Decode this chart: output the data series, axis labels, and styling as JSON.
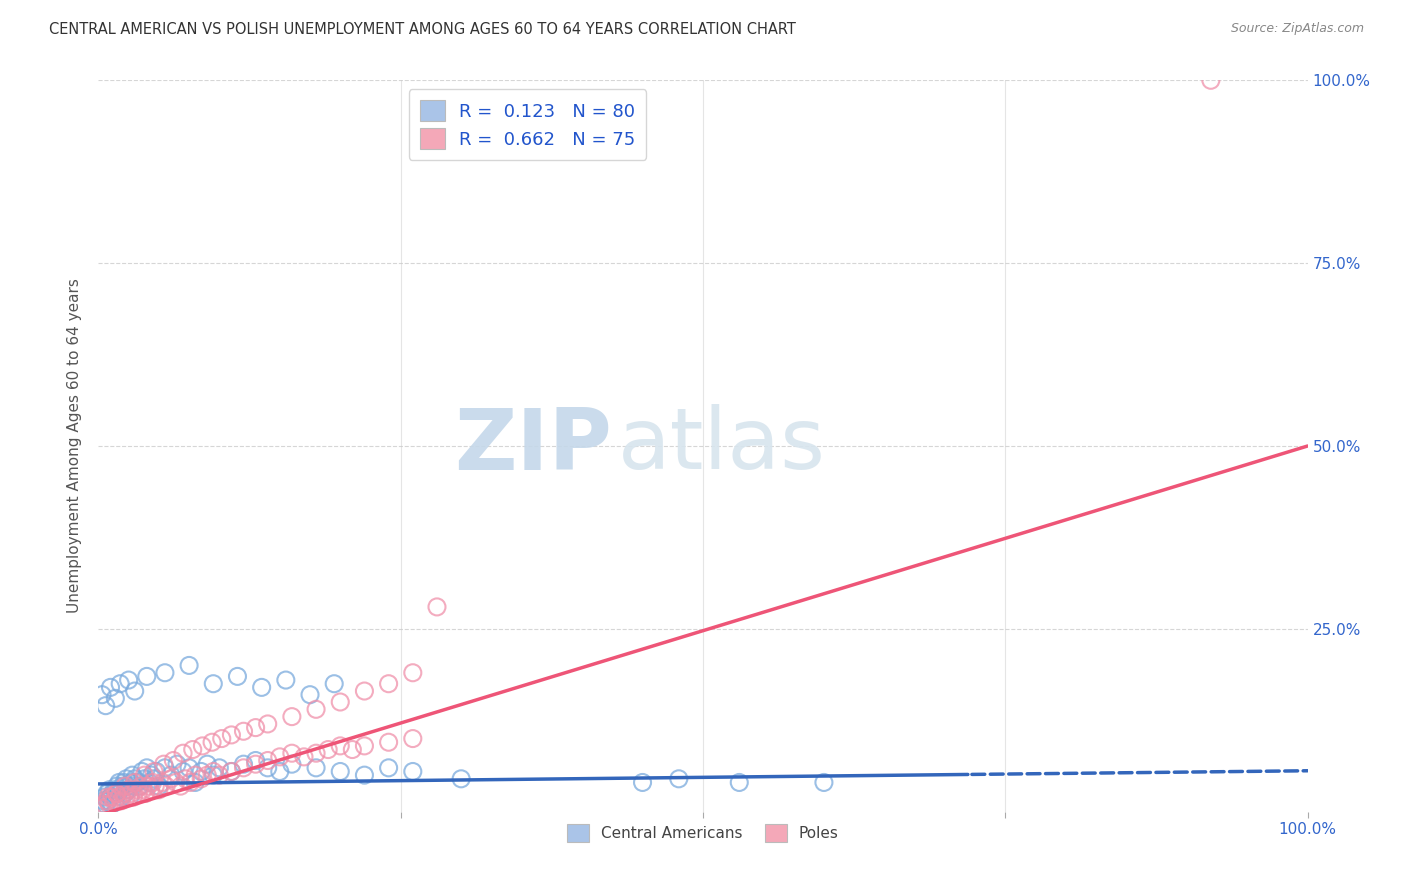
{
  "title": "CENTRAL AMERICAN VS POLISH UNEMPLOYMENT AMONG AGES 60 TO 64 YEARS CORRELATION CHART",
  "source": "Source: ZipAtlas.com",
  "ylabel": "Unemployment Among Ages 60 to 64 years",
  "xlim": [
    0,
    1.0
  ],
  "ylim": [
    0,
    1.0
  ],
  "background_color": "#ffffff",
  "grid_color": "#cccccc",
  "legend_R1": "0.123",
  "legend_N1": "80",
  "legend_R2": "0.662",
  "legend_N2": "75",
  "legend_color1": "#aac4e8",
  "legend_color2": "#f4a8b8",
  "series1_name": "Central Americans",
  "series2_name": "Poles",
  "series1_color": "#7aaadd",
  "series2_color": "#f090aa",
  "series1_line_color": "#3366bb",
  "series2_line_color": "#ee5577",
  "ca_line_slope": 0.018,
  "ca_line_intercept": 0.038,
  "ca_line_solid_end": 0.72,
  "pl_line_slope": 0.505,
  "pl_line_intercept": -0.005,
  "ca_x": [
    0.002,
    0.004,
    0.005,
    0.006,
    0.007,
    0.008,
    0.009,
    0.01,
    0.011,
    0.012,
    0.013,
    0.014,
    0.015,
    0.016,
    0.017,
    0.018,
    0.019,
    0.02,
    0.021,
    0.022,
    0.023,
    0.024,
    0.025,
    0.026,
    0.027,
    0.028,
    0.029,
    0.03,
    0.032,
    0.034,
    0.036,
    0.038,
    0.04,
    0.042,
    0.044,
    0.046,
    0.048,
    0.05,
    0.055,
    0.06,
    0.065,
    0.07,
    0.075,
    0.08,
    0.085,
    0.09,
    0.095,
    0.1,
    0.11,
    0.12,
    0.13,
    0.14,
    0.15,
    0.16,
    0.18,
    0.2,
    0.22,
    0.24,
    0.26,
    0.3,
    0.003,
    0.006,
    0.01,
    0.014,
    0.018,
    0.025,
    0.03,
    0.04,
    0.055,
    0.075,
    0.095,
    0.115,
    0.135,
    0.155,
    0.175,
    0.195,
    0.45,
    0.48,
    0.53,
    0.6
  ],
  "ca_y": [
    0.01,
    0.015,
    0.02,
    0.01,
    0.025,
    0.015,
    0.03,
    0.02,
    0.01,
    0.025,
    0.03,
    0.015,
    0.035,
    0.025,
    0.04,
    0.03,
    0.02,
    0.035,
    0.04,
    0.025,
    0.045,
    0.035,
    0.03,
    0.02,
    0.04,
    0.05,
    0.035,
    0.045,
    0.04,
    0.035,
    0.055,
    0.045,
    0.06,
    0.04,
    0.05,
    0.045,
    0.055,
    0.035,
    0.06,
    0.05,
    0.065,
    0.055,
    0.06,
    0.04,
    0.055,
    0.065,
    0.05,
    0.06,
    0.055,
    0.065,
    0.07,
    0.06,
    0.055,
    0.065,
    0.06,
    0.055,
    0.05,
    0.06,
    0.055,
    0.045,
    0.16,
    0.145,
    0.17,
    0.155,
    0.175,
    0.18,
    0.165,
    0.185,
    0.19,
    0.2,
    0.175,
    0.185,
    0.17,
    0.18,
    0.16,
    0.175,
    0.04,
    0.045,
    0.04,
    0.04
  ],
  "pl_x": [
    0.003,
    0.005,
    0.007,
    0.009,
    0.011,
    0.013,
    0.015,
    0.017,
    0.019,
    0.021,
    0.023,
    0.025,
    0.027,
    0.029,
    0.031,
    0.033,
    0.035,
    0.037,
    0.039,
    0.041,
    0.043,
    0.045,
    0.047,
    0.05,
    0.053,
    0.056,
    0.06,
    0.064,
    0.068,
    0.072,
    0.076,
    0.08,
    0.085,
    0.09,
    0.095,
    0.1,
    0.11,
    0.12,
    0.13,
    0.14,
    0.15,
    0.16,
    0.17,
    0.18,
    0.19,
    0.2,
    0.21,
    0.22,
    0.24,
    0.26,
    0.008,
    0.015,
    0.022,
    0.03,
    0.038,
    0.046,
    0.054,
    0.062,
    0.07,
    0.078,
    0.086,
    0.094,
    0.102,
    0.11,
    0.12,
    0.13,
    0.14,
    0.16,
    0.18,
    0.2,
    0.22,
    0.24,
    0.26,
    0.28,
    0.92
  ],
  "pl_y": [
    0.005,
    0.01,
    0.015,
    0.01,
    0.02,
    0.015,
    0.025,
    0.02,
    0.015,
    0.025,
    0.02,
    0.03,
    0.025,
    0.02,
    0.03,
    0.025,
    0.035,
    0.03,
    0.025,
    0.035,
    0.03,
    0.04,
    0.035,
    0.03,
    0.04,
    0.035,
    0.045,
    0.04,
    0.035,
    0.045,
    0.04,
    0.05,
    0.045,
    0.05,
    0.055,
    0.05,
    0.055,
    0.06,
    0.065,
    0.07,
    0.075,
    0.08,
    0.075,
    0.08,
    0.085,
    0.09,
    0.085,
    0.09,
    0.095,
    0.1,
    0.02,
    0.025,
    0.035,
    0.04,
    0.05,
    0.055,
    0.065,
    0.07,
    0.08,
    0.085,
    0.09,
    0.095,
    0.1,
    0.105,
    0.11,
    0.115,
    0.12,
    0.13,
    0.14,
    0.15,
    0.165,
    0.175,
    0.19,
    0.28,
    1.0
  ]
}
